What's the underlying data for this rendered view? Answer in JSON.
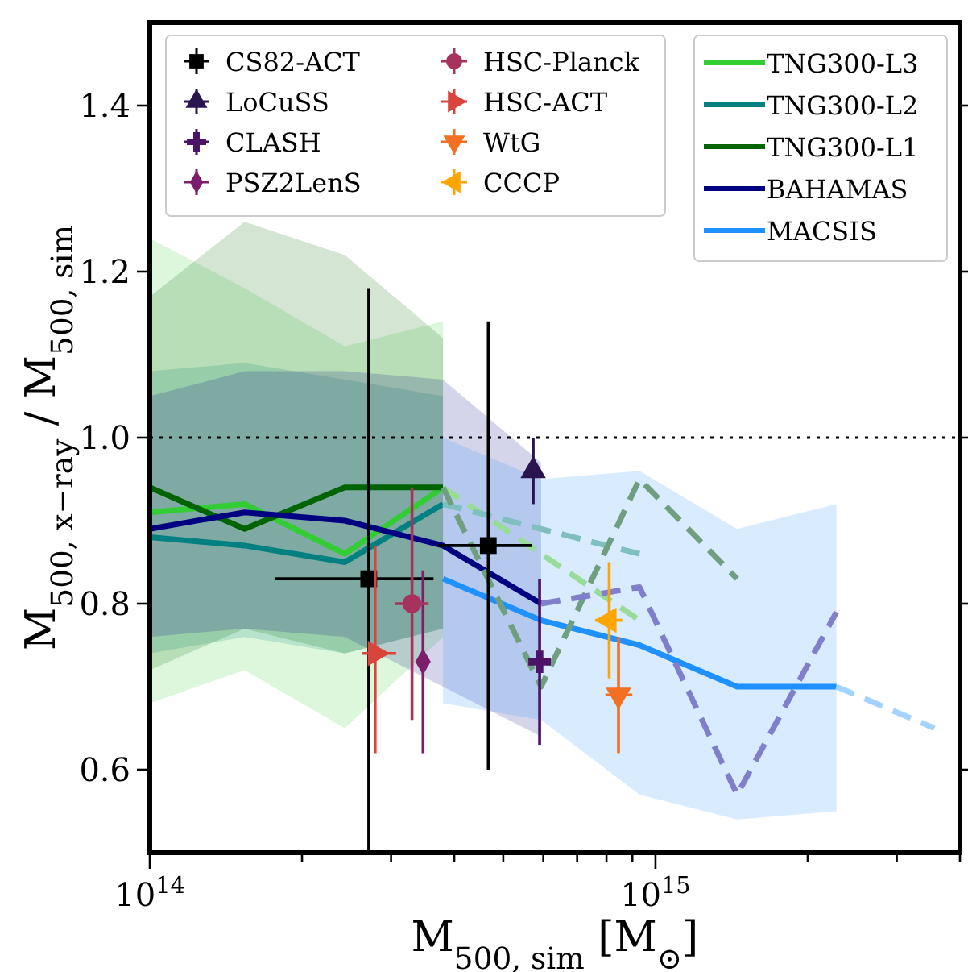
{
  "chart_data": {
    "type": "line",
    "xlabel": "M$_{500, sim}$  [M$_{⊙}$]",
    "ylabel": "M$_{500, x−ray}$ / M$_{500, sim}$",
    "log": "x",
    "xlim": [
      100000000000000.0,
      4000000000000000.0
    ],
    "ylim": [
      0.5,
      1.5
    ],
    "xticks": [
      {
        "value": 100000000000000.0,
        "label": "10$^{14}$"
      },
      {
        "value": 200000000000000.0,
        "label": null
      },
      {
        "value": 300000000000000.0,
        "label": null
      },
      {
        "value": 400000000000000.0,
        "label": null
      },
      {
        "value": 500000000000000.0,
        "label": null
      },
      {
        "value": 600000000000000.0,
        "label": null
      },
      {
        "value": 700000000000000.0,
        "label": null
      },
      {
        "value": 800000000000000.0,
        "label": null
      },
      {
        "value": 900000000000000.0,
        "label": null
      },
      {
        "value": 1000000000000000.0,
        "label": "10$^{15}$"
      },
      {
        "value": 2000000000000000.0,
        "label": null
      },
      {
        "value": 3000000000000000.0,
        "label": null
      },
      {
        "value": 4000000000000000.0,
        "label": null
      }
    ],
    "yticks": [
      0.6,
      0.8,
      {
        "value": 1,
        "label": "1.0"
      },
      1.2,
      1.4
    ],
    "legend": "top",
    "ref_lines": [
      {
        "axis": "y",
        "value": 1,
        "color": "#000000",
        "line_style": "dotted"
      }
    ],
    "series": [
      {
        "name": "TNG300-L3",
        "color": "#32cd32",
        "x": [
          100000000000000.0,
          154000000000000.0,
          243000000000000.0,
          380000000000000.0
        ],
        "values": [
          0.91,
          0.92,
          0.86,
          0.94
        ],
        "lower": [
          0.68,
          0.72,
          0.65,
          0.76
        ],
        "upper": [
          1.24,
          1.18,
          1.11,
          1.14
        ]
      },
      {
        "name": "TNG300-L2",
        "color": "#008080",
        "x": [
          100000000000000.0,
          154000000000000.0,
          243000000000000.0,
          380000000000000.0
        ],
        "values": [
          0.88,
          0.87,
          0.85,
          0.92
        ],
        "lower": [
          0.74,
          0.76,
          0.74,
          0.77
        ],
        "upper": [
          1.08,
          1.09,
          1.07,
          1.05
        ]
      },
      {
        "name": "TNG300-L1",
        "color": "#006400",
        "x": [
          100000000000000.0,
          154000000000000.0,
          243000000000000.0,
          380000000000000.0
        ],
        "values": [
          0.94,
          0.89,
          0.94,
          0.94
        ],
        "lower": [
          0.72,
          0.77,
          0.74,
          0.77
        ],
        "upper": [
          1.17,
          1.26,
          1.22,
          1.12
        ]
      },
      {
        "name": "BAHAMAS",
        "color": "#000080",
        "x": [
          100000000000000.0,
          154000000000000.0,
          243000000000000.0,
          380000000000000.0,
          594000000000000.0
        ],
        "values": [
          0.89,
          0.91,
          0.9,
          0.87,
          0.8
        ],
        "lower": [
          0.76,
          0.77,
          0.76,
          0.7,
          0.64
        ],
        "upper": [
          1.05,
          1.08,
          1.08,
          1.07,
          0.97
        ]
      },
      {
        "name": "MACSIS",
        "color": "#1e90ff",
        "x": [
          380000000000000.0,
          594000000000000.0,
          930000000000000.0,
          1450000000000000.0,
          2280000000000000.0
        ],
        "values": [
          0.83,
          0.78,
          0.75,
          0.7,
          0.7
        ],
        "lower": [
          0.68,
          0.66,
          0.57,
          0.54,
          0.55
        ],
        "upper": [
          1.0,
          0.95,
          0.96,
          0.89,
          0.92
        ]
      },
      {
        "type": "line",
        "line_style": "dashed",
        "color": "#98dc98",
        "x": [
          380000000000000.0,
          930000000000000.0
        ],
        "values": [
          0.94,
          0.78
        ]
      },
      {
        "type": "line",
        "line_style": "dashed",
        "color": "#80bfbf",
        "x": [
          380000000000000.0,
          930000000000000.0
        ],
        "values": [
          0.92,
          0.86
        ]
      },
      {
        "type": "line",
        "line_style": "dashed",
        "color": "#6f9f80",
        "x": [
          380000000000000.0,
          594000000000000.0,
          930000000000000.0,
          1450000000000000.0
        ],
        "values": [
          0.94,
          0.7,
          0.95,
          0.83
        ]
      },
      {
        "type": "line",
        "line_style": "dashed",
        "color": "#7f7fcc",
        "x": [
          594000000000000.0,
          930000000000000.0,
          1450000000000000.0,
          2280000000000000.0
        ],
        "values": [
          0.8,
          0.82,
          0.57,
          0.79
        ]
      },
      {
        "type": "line",
        "line_style": "dashed",
        "color": "#a5d3ff",
        "x": [
          2280000000000000.0,
          3560000000000000.0
        ],
        "values": [
          0.7,
          0.65
        ]
      },
      {
        "name": "CS82-ACT",
        "type": "scatter",
        "marker": "square",
        "color": "#000000",
        "x": [
          271000000000000.0,
          467000000000000.0
        ],
        "values": [
          0.83,
          0.87
        ],
        "errors": [
          [
            0.5,
            1.18
          ],
          [
            0.6,
            1.14
          ]
        ],
        "xerrors": [
          [
            177000000000000.0,
            364000000000000.0
          ],
          [
            372000000000000.0,
            569000000000000.0
          ]
        ]
      },
      {
        "name": "LoCuSS",
        "type": "scatter",
        "marker": "triangle",
        "color": "#2a1450",
        "x": [
          573000000000000.0
        ],
        "values": [
          0.96
        ],
        "errors": [
          [
            0.92,
            1.0
          ]
        ]
      },
      {
        "name": "CLASH",
        "type": "scatter",
        "marker": "cross",
        "color": "#4b1368",
        "x": [
          590000000000000.0
        ],
        "values": [
          0.73
        ],
        "errors": [
          [
            0.63,
            0.83
          ]
        ]
      },
      {
        "name": "PSZ2LenS",
        "type": "scatter",
        "marker": "diamond",
        "color": "#7b1f6a",
        "x": [
          347000000000000.0
        ],
        "values": [
          0.73
        ],
        "errors": [
          [
            0.62,
            0.84
          ]
        ]
      },
      {
        "name": "HSC-Planck",
        "type": "scatter",
        "marker": "circle",
        "color": "#a8325e",
        "x": [
          330000000000000.0
        ],
        "values": [
          0.8
        ],
        "errors": [
          [
            0.66,
            0.94
          ]
        ],
        "xerrors": [
          [
            305000000000000.0,
            356000000000000.0
          ]
        ]
      },
      {
        "name": "HSC-ACT",
        "type": "scatter",
        "marker": "triangle-right",
        "color": "#d9453c",
        "x": [
          279000000000000.0
        ],
        "values": [
          0.74
        ],
        "errors": [
          [
            0.62,
            0.87
          ]
        ],
        "xerrors": [
          [
            263000000000000.0,
            307000000000000.0
          ]
        ]
      },
      {
        "name": "WtG",
        "type": "scatter",
        "marker": "triangle-down",
        "color": "#f36f21",
        "x": [
          845000000000000.0
        ],
        "values": [
          0.69
        ],
        "errors": [
          [
            0.62,
            0.76
          ]
        ],
        "xerrors": [
          [
            796000000000000.0,
            900000000000000.0
          ]
        ]
      },
      {
        "name": "CCCP",
        "type": "scatter",
        "marker": "triangle-left",
        "color": "#ffa500",
        "x": [
          810000000000000.0
        ],
        "values": [
          0.78
        ],
        "errors": [
          [
            0.71,
            0.85
          ]
        ],
        "xerrors": [
          [
            760000000000000.0,
            860000000000000.0
          ]
        ]
      }
    ]
  }
}
